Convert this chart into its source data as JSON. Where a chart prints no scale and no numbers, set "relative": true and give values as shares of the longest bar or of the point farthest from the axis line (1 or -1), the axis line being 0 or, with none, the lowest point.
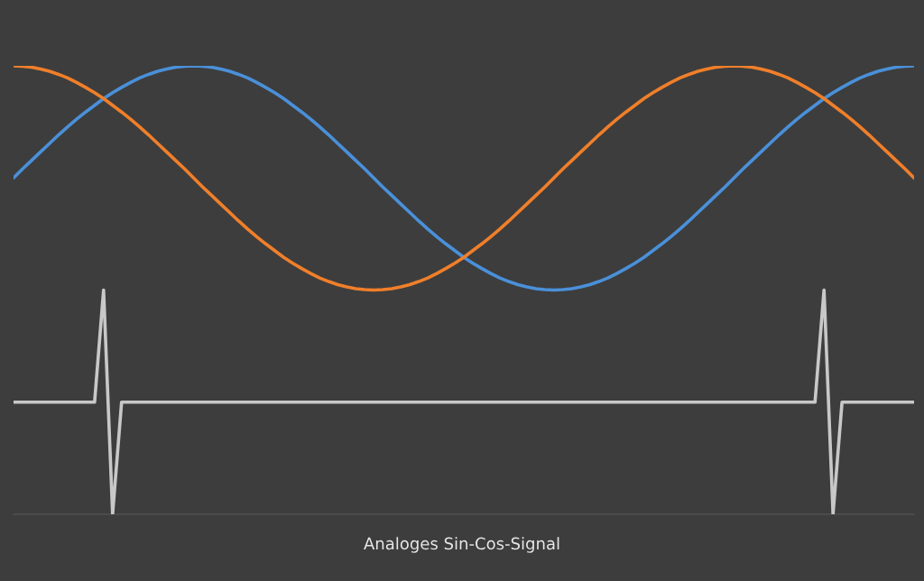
{
  "chart_data": {
    "type": "line",
    "title": "Analoges Sin-Cos-Signal",
    "relative": true,
    "categories": [
      null,
      null,
      null,
      null,
      null,
      null,
      null,
      null,
      null,
      null,
      null,
      null,
      null,
      null,
      null,
      null,
      null,
      null,
      null,
      null,
      null,
      null,
      null,
      null,
      null,
      null,
      null,
      null,
      null,
      null,
      null,
      null,
      null,
      null,
      null,
      null,
      null,
      null,
      null,
      null,
      null,
      null,
      null,
      null,
      null,
      null,
      null,
      null,
      null,
      null,
      null,
      null,
      null,
      null,
      null,
      null,
      null,
      null,
      null,
      null,
      null,
      null,
      null,
      null,
      null,
      null,
      null,
      null,
      null,
      null,
      null,
      null,
      null,
      null,
      null,
      null,
      null,
      null,
      null,
      null,
      null,
      null,
      null,
      null,
      null,
      null,
      null,
      null,
      null,
      null,
      null,
      null,
      null,
      null,
      null,
      null,
      null,
      null,
      null,
      null,
      null
    ],
    "series": [
      {
        "color": "#4a90d9",
        "values": [
          0.75,
          0.77,
          0.789,
          0.808,
          0.827,
          0.846,
          0.864,
          0.881,
          0.897,
          0.912,
          0.927,
          0.94,
          0.952,
          0.963,
          0.973,
          0.981,
          0.988,
          0.993,
          0.997,
          0.999,
          1,
          0.999,
          0.997,
          0.993,
          0.988,
          0.981,
          0.973,
          0.963,
          0.952,
          0.94,
          0.927,
          0.912,
          0.897,
          0.881,
          0.864,
          0.846,
          0.827,
          0.808,
          0.789,
          0.77,
          0.75,
          0.73,
          0.711,
          0.692,
          0.673,
          0.654,
          0.636,
          0.619,
          0.603,
          0.588,
          0.573,
          0.56,
          0.548,
          0.537,
          0.527,
          0.519,
          0.512,
          0.507,
          0.503,
          0.501,
          0.5,
          0.501,
          0.503,
          0.507,
          0.512,
          0.519,
          0.527,
          0.537,
          0.548,
          0.56,
          0.573,
          0.588,
          0.603,
          0.619,
          0.636,
          0.654,
          0.673,
          0.692,
          0.711,
          0.73,
          0.75,
          0.77,
          0.789,
          0.808,
          0.827,
          0.846,
          0.864,
          0.881,
          0.897,
          0.912,
          0.927,
          0.94,
          0.952,
          0.963,
          0.973,
          0.981,
          0.988,
          0.993,
          0.997,
          0.999,
          1
        ]
      },
      {
        "color": "#f07f2a",
        "values": [
          1,
          0.999,
          0.997,
          0.993,
          0.988,
          0.981,
          0.973,
          0.963,
          0.952,
          0.94,
          0.927,
          0.912,
          0.897,
          0.881,
          0.864,
          0.846,
          0.827,
          0.808,
          0.789,
          0.77,
          0.75,
          0.73,
          0.711,
          0.692,
          0.673,
          0.654,
          0.636,
          0.619,
          0.603,
          0.588,
          0.573,
          0.56,
          0.548,
          0.537,
          0.527,
          0.519,
          0.512,
          0.507,
          0.503,
          0.501,
          0.5,
          0.501,
          0.503,
          0.507,
          0.512,
          0.519,
          0.527,
          0.537,
          0.548,
          0.56,
          0.573,
          0.588,
          0.603,
          0.619,
          0.636,
          0.654,
          0.673,
          0.692,
          0.711,
          0.73,
          0.75,
          0.77,
          0.789,
          0.808,
          0.827,
          0.846,
          0.864,
          0.881,
          0.897,
          0.912,
          0.927,
          0.94,
          0.952,
          0.963,
          0.973,
          0.981,
          0.988,
          0.993,
          0.997,
          0.999,
          1,
          0.999,
          0.997,
          0.993,
          0.988,
          0.981,
          0.973,
          0.963,
          0.952,
          0.94,
          0.927,
          0.912,
          0.897,
          0.881,
          0.864,
          0.846,
          0.827,
          0.808,
          0.789,
          0.77,
          0.75
        ]
      },
      {
        "color": "#c8c8c8",
        "values": [
          0.25,
          0.25,
          0.25,
          0.25,
          0.25,
          0.25,
          0.25,
          0.25,
          0.25,
          0.25,
          0.5,
          0,
          0.25,
          0.25,
          0.25,
          0.25,
          0.25,
          0.25,
          0.25,
          0.25,
          0.25,
          0.25,
          0.25,
          0.25,
          0.25,
          0.25,
          0.25,
          0.25,
          0.25,
          0.25,
          0.25,
          0.25,
          0.25,
          0.25,
          0.25,
          0.25,
          0.25,
          0.25,
          0.25,
          0.25,
          0.25,
          0.25,
          0.25,
          0.25,
          0.25,
          0.25,
          0.25,
          0.25,
          0.25,
          0.25,
          0.25,
          0.25,
          0.25,
          0.25,
          0.25,
          0.25,
          0.25,
          0.25,
          0.25,
          0.25,
          0.25,
          0.25,
          0.25,
          0.25,
          0.25,
          0.25,
          0.25,
          0.25,
          0.25,
          0.25,
          0.25,
          0.25,
          0.25,
          0.25,
          0.25,
          0.25,
          0.25,
          0.25,
          0.25,
          0.25,
          0.25,
          0.25,
          0.25,
          0.25,
          0.25,
          0.25,
          0.25,
          0.25,
          0.25,
          0.25,
          0.5,
          0,
          0.25,
          0.25,
          0.25,
          0.25,
          0.25,
          0.25,
          0.25,
          0.25,
          0.25
        ]
      }
    ]
  }
}
